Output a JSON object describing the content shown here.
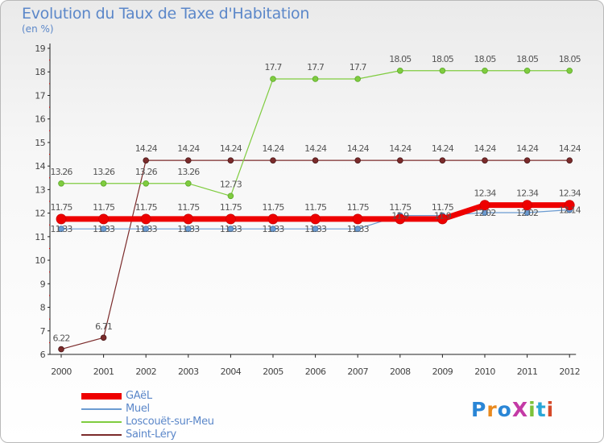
{
  "title": "Evolution du Taux de Taxe d'Habitation",
  "subtitle": "(en %)",
  "logo_text": "ProXiti",
  "chart_data": {
    "type": "line",
    "x": [
      "2000",
      "2001",
      "2002",
      "2003",
      "2004",
      "2005",
      "2006",
      "2007",
      "2008",
      "2009",
      "2010",
      "2011",
      "2012"
    ],
    "ylim": [
      6,
      19
    ],
    "yticks": [
      6,
      7,
      8,
      9,
      10,
      11,
      12,
      13,
      14,
      15,
      16,
      17,
      18,
      19
    ],
    "grid": false,
    "legend_position": "bottom-left",
    "series": [
      {
        "name": "GAëL",
        "color": "#ee0000",
        "values": [
          11.75,
          11.75,
          11.75,
          11.75,
          11.75,
          11.75,
          11.75,
          11.75,
          11.75,
          11.75,
          12.34,
          12.34,
          12.34
        ]
      },
      {
        "name": "Muel",
        "color": "#6b9bd1",
        "values": [
          11.33,
          11.33,
          11.33,
          11.33,
          11.33,
          11.33,
          11.33,
          11.33,
          11.9,
          11.9,
          12.02,
          12.02,
          12.14
        ]
      },
      {
        "name": "Loscouët-sur-Meu",
        "color": "#7fcc3f",
        "values": [
          13.26,
          13.26,
          13.26,
          13.26,
          12.73,
          17.7,
          17.7,
          17.7,
          18.05,
          18.05,
          18.05,
          18.05,
          18.05
        ]
      },
      {
        "name": "Saint-Léry",
        "color": "#7b2b2b",
        "values": [
          6.22,
          6.71,
          14.24,
          14.24,
          14.24,
          14.24,
          14.24,
          14.24,
          14.24,
          14.24,
          14.24,
          14.24,
          14.24
        ]
      }
    ],
    "data_labels": [
      [
        "11.75",
        "11.75",
        "11.75",
        "11.75",
        "11.75",
        "11.75",
        "11.75",
        "11.75",
        "11.75",
        "11.75",
        "12.34",
        "12.34",
        "12.34"
      ],
      [
        "11.33",
        "11.33",
        "11.33",
        "11.33",
        "11.33",
        "11.33",
        "11.33",
        "11.33",
        "11.9",
        "11.9",
        "12.02",
        "12.02",
        "12.14"
      ],
      [
        "13.26",
        "13.26",
        "13.26",
        "13.26",
        "12.73",
        "17.7",
        "17.7",
        "17.7",
        "18.05",
        "18.05",
        "18.05",
        "18.05",
        "18.05"
      ],
      [
        "6.22",
        "6.71",
        "14.24",
        "14.24",
        "14.24",
        "14.24",
        "14.24",
        "14.24",
        "14.24",
        "14.24",
        "14.24",
        "14.24",
        "14.24"
      ]
    ]
  }
}
